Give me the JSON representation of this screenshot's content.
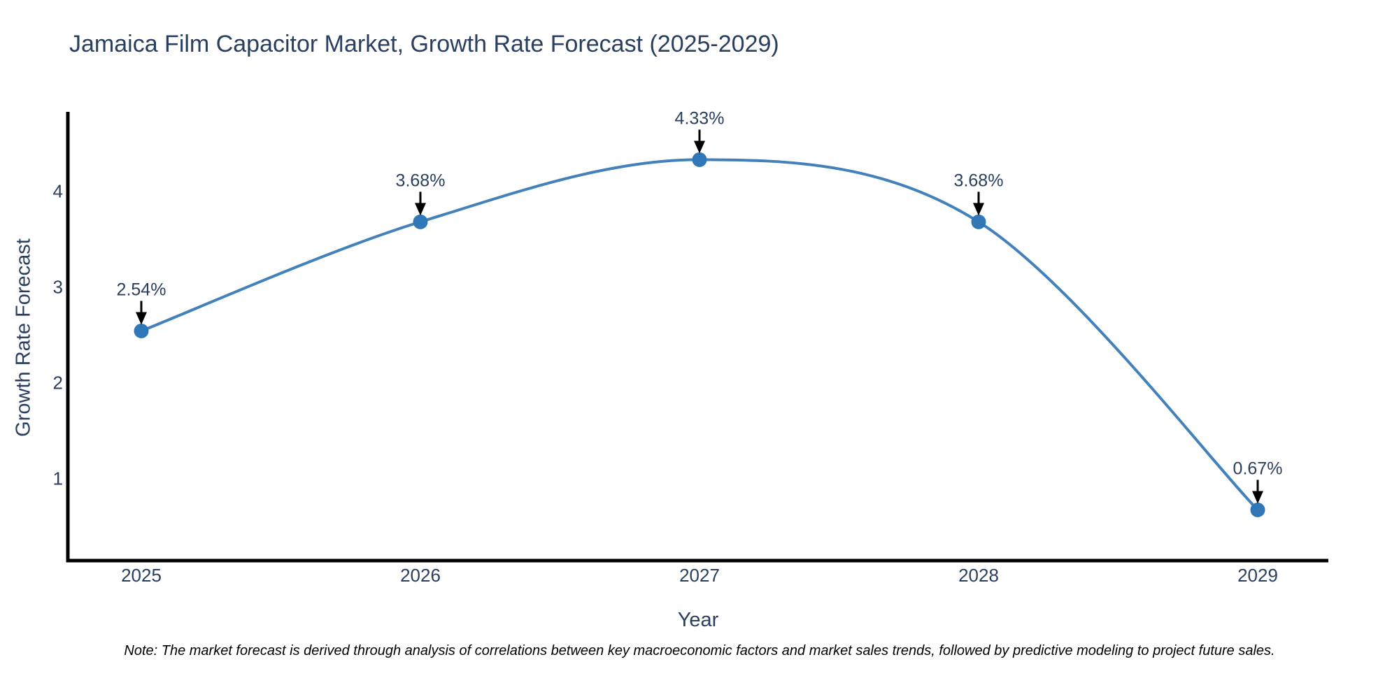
{
  "title": {
    "text": "Jamaica Film Capacitor Market, Growth Rate Forecast (2025-2029)"
  },
  "note": {
    "text": "Note: The market forecast is derived through analysis of correlations between key macroeconomic factors and market sales trends, followed by predictive modeling to project future sales."
  },
  "chart_data": {
    "type": "line",
    "line_shape": "spline",
    "title": "Jamaica Film Capacitor Market, Growth Rate Forecast (2025-2029)",
    "xlabel": "Year",
    "ylabel": "Growth Rate Forecast",
    "x": [
      "2025",
      "2026",
      "2027",
      "2028",
      "2029"
    ],
    "series": [
      {
        "name": "Growth Rate Forecast",
        "values": [
          2.54,
          3.68,
          4.33,
          3.68,
          0.67
        ]
      }
    ],
    "point_labels": [
      "2.54%",
      "3.68%",
      "4.33%",
      "3.68%",
      "0.67%"
    ],
    "yticks": [
      1,
      2,
      3,
      4
    ],
    "ylim": [
      0.14,
      4.83
    ],
    "grid": false,
    "legend": "none",
    "colors": {
      "line": "#4281b9",
      "marker": "#2f77b6",
      "axis": "#000000",
      "text": "#2a3f5f",
      "arrow": "#000000",
      "background": "#ffffff"
    }
  }
}
